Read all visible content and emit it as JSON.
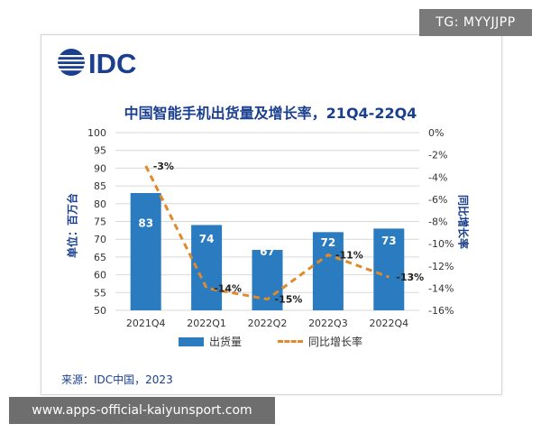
{
  "watermark_top": "TG: MYYJJPP",
  "watermark_bottom": "www.apps-official-kaiyunsport.com",
  "logo_text": "IDC",
  "source": "来源：IDC中国，2023",
  "colors": {
    "bar": "#2b7bc0",
    "line": "#e08a2c",
    "text": "#1a3f8f"
  },
  "chart_data": {
    "type": "bar+line",
    "title": "中国智能手机出货量及增长率，21Q4-22Q4",
    "categories": [
      "2021Q4",
      "2022Q1",
      "2022Q2",
      "2022Q3",
      "2022Q4"
    ],
    "series": [
      {
        "name": "出货量",
        "type": "bar",
        "axis": "left",
        "values": [
          83,
          74,
          67,
          72,
          73
        ]
      },
      {
        "name": "同比增长率",
        "type": "line",
        "style": "dashed",
        "axis": "right",
        "values": [
          -3,
          -14,
          -15,
          -11,
          -13
        ]
      }
    ],
    "ylabel_left": "单位：百万台",
    "ylabel_right": "同比增长率",
    "ylim_left": [
      50,
      100
    ],
    "yticks_left": [
      50,
      55,
      60,
      65,
      70,
      75,
      80,
      85,
      90,
      95,
      100
    ],
    "ylim_right": [
      -16,
      0
    ],
    "yticks_right": [
      0,
      -2,
      -4,
      -6,
      -8,
      -10,
      -12,
      -14,
      -16
    ],
    "right_tick_suffix": "%",
    "line_label_suffix": "%",
    "grid": true,
    "legend_position": "bottom"
  }
}
